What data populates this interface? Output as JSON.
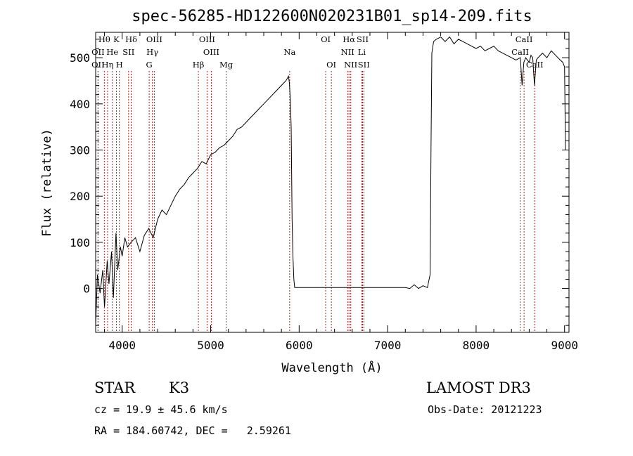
{
  "chart_data": {
    "type": "line",
    "title": "spec-56285-HD122600N020231B01_sp14-209.fits",
    "xlabel": "Wavelength (Å)",
    "ylabel": "Flux (relative)",
    "xlim": [
      3700,
      9050
    ],
    "ylim": [
      -95,
      555
    ],
    "x_ticks": [
      4000,
      5000,
      6000,
      7000,
      8000,
      9000
    ],
    "y_ticks": [
      0,
      100,
      200,
      300,
      400,
      500
    ],
    "series": [
      {
        "name": "flux",
        "x": [
          3700,
          3720,
          3750,
          3780,
          3800,
          3830,
          3850,
          3880,
          3900,
          3930,
          3950,
          3980,
          4000,
          4030,
          4060,
          4100,
          4150,
          4200,
          4250,
          4300,
          4350,
          4400,
          4450,
          4500,
          4550,
          4600,
          4650,
          4700,
          4750,
          4800,
          4850,
          4900,
          4950,
          5000,
          5050,
          5100,
          5150,
          5200,
          5250,
          5300,
          5350,
          5400,
          5450,
          5500,
          5550,
          5600,
          5650,
          5700,
          5750,
          5800,
          5850,
          5880,
          5890,
          5900,
          5910,
          5920,
          5930,
          5940,
          5950,
          6000,
          6500,
          7000,
          7200,
          7250,
          7300,
          7350,
          7400,
          7450,
          7480,
          7490,
          7500,
          7520,
          7550,
          7600,
          7650,
          7700,
          7750,
          7800,
          7850,
          7900,
          7950,
          8000,
          8050,
          8100,
          8150,
          8200,
          8250,
          8300,
          8350,
          8400,
          8450,
          8500,
          8520,
          8540,
          8560,
          8580,
          8600,
          8620,
          8640,
          8660,
          8680,
          8700,
          8750,
          8800,
          8850,
          8900,
          8950,
          8980,
          9000,
          9010
        ],
        "y": [
          -80,
          30,
          -10,
          40,
          -40,
          60,
          10,
          80,
          -20,
          120,
          40,
          90,
          70,
          110,
          90,
          100,
          110,
          80,
          115,
          130,
          110,
          150,
          170,
          160,
          180,
          200,
          215,
          225,
          240,
          250,
          260,
          275,
          270,
          290,
          295,
          305,
          310,
          320,
          330,
          345,
          350,
          360,
          370,
          380,
          390,
          400,
          410,
          420,
          430,
          440,
          450,
          460,
          445,
          410,
          350,
          150,
          70,
          20,
          2,
          2,
          2,
          2,
          2,
          0,
          8,
          0,
          6,
          2,
          30,
          300,
          510,
          535,
          540,
          545,
          535,
          545,
          530,
          540,
          535,
          530,
          525,
          520,
          525,
          515,
          520,
          525,
          515,
          510,
          505,
          500,
          495,
          500,
          440,
          490,
          500,
          495,
          490,
          505,
          500,
          440,
          495,
          500,
          510,
          500,
          515,
          505,
          495,
          490,
          480,
          300
        ]
      }
    ],
    "spectral_lines": [
      {
        "name": "Hθ",
        "wave": 3798,
        "row": 0
      },
      {
        "name": "K",
        "wave": 3934,
        "row": 0
      },
      {
        "name": "Hδ",
        "wave": 4102,
        "row": 0
      },
      {
        "name": "OIII",
        "wave": 4363,
        "row": 0
      },
      {
        "name": "OIII",
        "wave": 4959,
        "row": 0
      },
      {
        "name": "OI",
        "wave": 6300,
        "row": 0
      },
      {
        "name": "Hα",
        "wave": 6563,
        "row": 0
      },
      {
        "name": "SII",
        "wave": 6717,
        "row": 0
      },
      {
        "name": "CaII",
        "wave": 8542,
        "row": 0
      },
      {
        "name": "OII",
        "wave": 3727,
        "row": 1
      },
      {
        "name": "He",
        "wave": 3889,
        "row": 1
      },
      {
        "name": "SII",
        "wave": 4072,
        "row": 1
      },
      {
        "name": "Hγ",
        "wave": 4341,
        "row": 1
      },
      {
        "name": "OIII",
        "wave": 5007,
        "row": 1
      },
      {
        "name": "Na",
        "wave": 5893,
        "row": 1
      },
      {
        "name": "NII",
        "wave": 6548,
        "row": 1
      },
      {
        "name": "Li",
        "wave": 6708,
        "row": 1
      },
      {
        "name": "CaII",
        "wave": 8498,
        "row": 1
      },
      {
        "name": "OII",
        "wave": 3727,
        "row": 2
      },
      {
        "name": "Hη",
        "wave": 3835,
        "row": 2
      },
      {
        "name": "H",
        "wave": 3968,
        "row": 2
      },
      {
        "name": "G",
        "wave": 4305,
        "row": 2
      },
      {
        "name": "Hβ",
        "wave": 4861,
        "row": 2
      },
      {
        "name": "Mg",
        "wave": 5175,
        "row": 2
      },
      {
        "name": "OI",
        "wave": 6364,
        "row": 2
      },
      {
        "name": "NII",
        "wave": 6583,
        "row": 2
      },
      {
        "name": "SII",
        "wave": 6731,
        "row": 2
      },
      {
        "name": "CaII",
        "wave": 8662,
        "row": 2
      }
    ],
    "line_color": "#b22222"
  },
  "info": {
    "object_class": "STAR",
    "subclass": "K3",
    "survey": "LAMOST DR3",
    "redshift": "cz = 19.9 ± 45.6 km/s",
    "obs_date": "Obs-Date: 20121223",
    "coords": "RA = 184.60742, DEC =   2.59261"
  }
}
